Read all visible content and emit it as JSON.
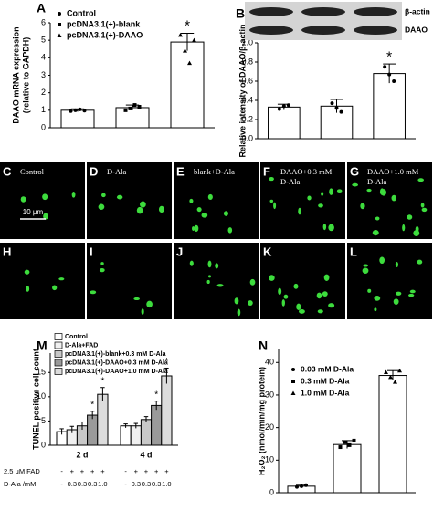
{
  "chart_data": [
    {
      "type": "bar",
      "panel_label": "A",
      "ylabel": [
        "DAAO mRNA expression",
        "(relative to GAPDH)"
      ],
      "ylim": [
        0,
        6
      ],
      "yticks": [
        0,
        1,
        2,
        3,
        4,
        5,
        6
      ],
      "legend": true,
      "series": [
        {
          "name": "Control",
          "color": "#ffffff",
          "marker": "circle",
          "values": [
            1.0
          ],
          "errors": [
            0.08
          ],
          "points": [
            0.95,
            1.0,
            1.05,
            0.98
          ]
        },
        {
          "name": "pcDNA3.1(+)-blank",
          "color": "#ffffff",
          "marker": "square",
          "values": [
            1.15
          ],
          "errors": [
            0.15
          ],
          "points": [
            1.0,
            1.1,
            1.3,
            1.2
          ]
        },
        {
          "name": "pcDNA3.1(+)-DAAO",
          "color": "#ffffff",
          "marker": "triangle",
          "values": [
            4.9
          ],
          "errors": [
            0.5
          ],
          "points": [
            5.3,
            4.4,
            3.7,
            5.0
          ],
          "significance": "*"
        }
      ]
    },
    {
      "type": "bar",
      "panel_label": "B",
      "ylabel": "Relative intensity of DAAO/β-actin",
      "blot_labels": [
        "β-actin",
        "DAAO"
      ],
      "ylim": [
        0,
        1.0
      ],
      "yticks": [
        {
          "value": 0,
          "label": "0.0"
        },
        0.2,
        0.4,
        0.6,
        0.8,
        {
          "value": 1.0,
          "label": "1.0"
        }
      ],
      "color": "#ffffff",
      "values": [
        0.33,
        0.34,
        0.68
      ],
      "errors": [
        0.03,
        0.07,
        0.1
      ],
      "points": [
        [
          0.31,
          0.34,
          0.35
        ],
        [
          0.37,
          0.32,
          0.28
        ],
        [
          0.75,
          0.67,
          0.6
        ]
      ],
      "significance": [
        null,
        null,
        "*"
      ]
    },
    {
      "type": "bar",
      "panel_label": "M",
      "ylabel": "TUNEL positive cell count",
      "legend": true,
      "ylim": [
        0,
        19
      ],
      "yticks": [
        0,
        5,
        10,
        15
      ],
      "categories": [
        "2 d",
        "4 d"
      ],
      "series": [
        {
          "name": "Control",
          "color": "#ffffff",
          "values": [
            2.8,
            4.0
          ],
          "errors": [
            0.6,
            0.4
          ]
        },
        {
          "name": "D-Ala+FAD",
          "color": "#f0f0f0",
          "values": [
            3.2,
            4.0
          ],
          "errors": [
            0.7,
            0.5
          ]
        },
        {
          "name": "pcDNA3.1(+)-blank+0.3 mM D-Ala",
          "color": "#c8c8c8",
          "values": [
            4.0,
            5.3
          ],
          "errors": [
            0.8,
            0.6
          ]
        },
        {
          "name": "pcDNA3.1(+)-DAAO+0.3 mM D-Ala",
          "color": "#9a9a9a",
          "values": [
            6.2,
            8.2
          ],
          "errors": [
            0.8,
            0.9
          ],
          "significance": [
            "*",
            "*"
          ]
        },
        {
          "name": "pcDNA3.1(+)-DAAO+1.0 mM D-Ala",
          "color": "#dcdcdc",
          "values": [
            10.5,
            14.3
          ],
          "errors": [
            1.4,
            1.6
          ],
          "significance": [
            "*",
            "*"
          ]
        }
      ],
      "table": [
        {
          "label": "2.5 μM FAD",
          "cells": [
            [
              "-",
              "+",
              "+",
              "+",
              "+"
            ],
            [
              "-",
              "+",
              "+",
              "+",
              "+"
            ]
          ]
        },
        {
          "label": "D-Ala /mM",
          "cells": [
            [
              "-",
              "0.3",
              "0.3",
              "0.3",
              "1.0"
            ],
            [
              "-",
              "0.3",
              "0.3",
              "0.3",
              "1.0"
            ]
          ]
        }
      ]
    },
    {
      "type": "bar",
      "panel_label": "N",
      "ylabel": "H₂O₂ (nmol/min/mg protein)",
      "legend": true,
      "ylim": [
        0,
        44
      ],
      "yticks": [
        0,
        10,
        20,
        30,
        40
      ],
      "series": [
        {
          "name": "0.03 mM D-Ala",
          "color": "#ffffff",
          "marker": "circle",
          "values": [
            2.0
          ],
          "errors": [
            0.3
          ],
          "points": [
            1.8,
            2.0,
            2.3
          ]
        },
        {
          "name": "0.3 mM D-Ala",
          "color": "#ffffff",
          "marker": "square",
          "values": [
            14.8
          ],
          "errors": [
            1.2
          ],
          "points": [
            14.0,
            15.5,
            14.6,
            16.0
          ]
        },
        {
          "name": "1.0 mM D-Ala",
          "color": "#ffffff",
          "marker": "triangle",
          "values": [
            36
          ],
          "errors": [
            1.5
          ],
          "points": [
            37.0,
            35.5,
            34.0,
            37.5
          ]
        }
      ]
    }
  ],
  "micrographs": [
    {
      "label": "C",
      "caption": [
        "Control"
      ],
      "scale_bar": "10 μm"
    },
    {
      "label": "D",
      "caption": [
        "D-Ala"
      ]
    },
    {
      "label": "E",
      "caption": [
        "blank+D-Ala"
      ]
    },
    {
      "label": "F",
      "caption": [
        "DAAO+0.3 mM",
        "D-Ala"
      ]
    },
    {
      "label": "G",
      "caption": [
        "DAAO+1.0 mM",
        "D-Ala"
      ]
    },
    {
      "label": "H"
    },
    {
      "label": "I"
    },
    {
      "label": "J"
    },
    {
      "label": "K"
    },
    {
      "label": "L"
    }
  ]
}
